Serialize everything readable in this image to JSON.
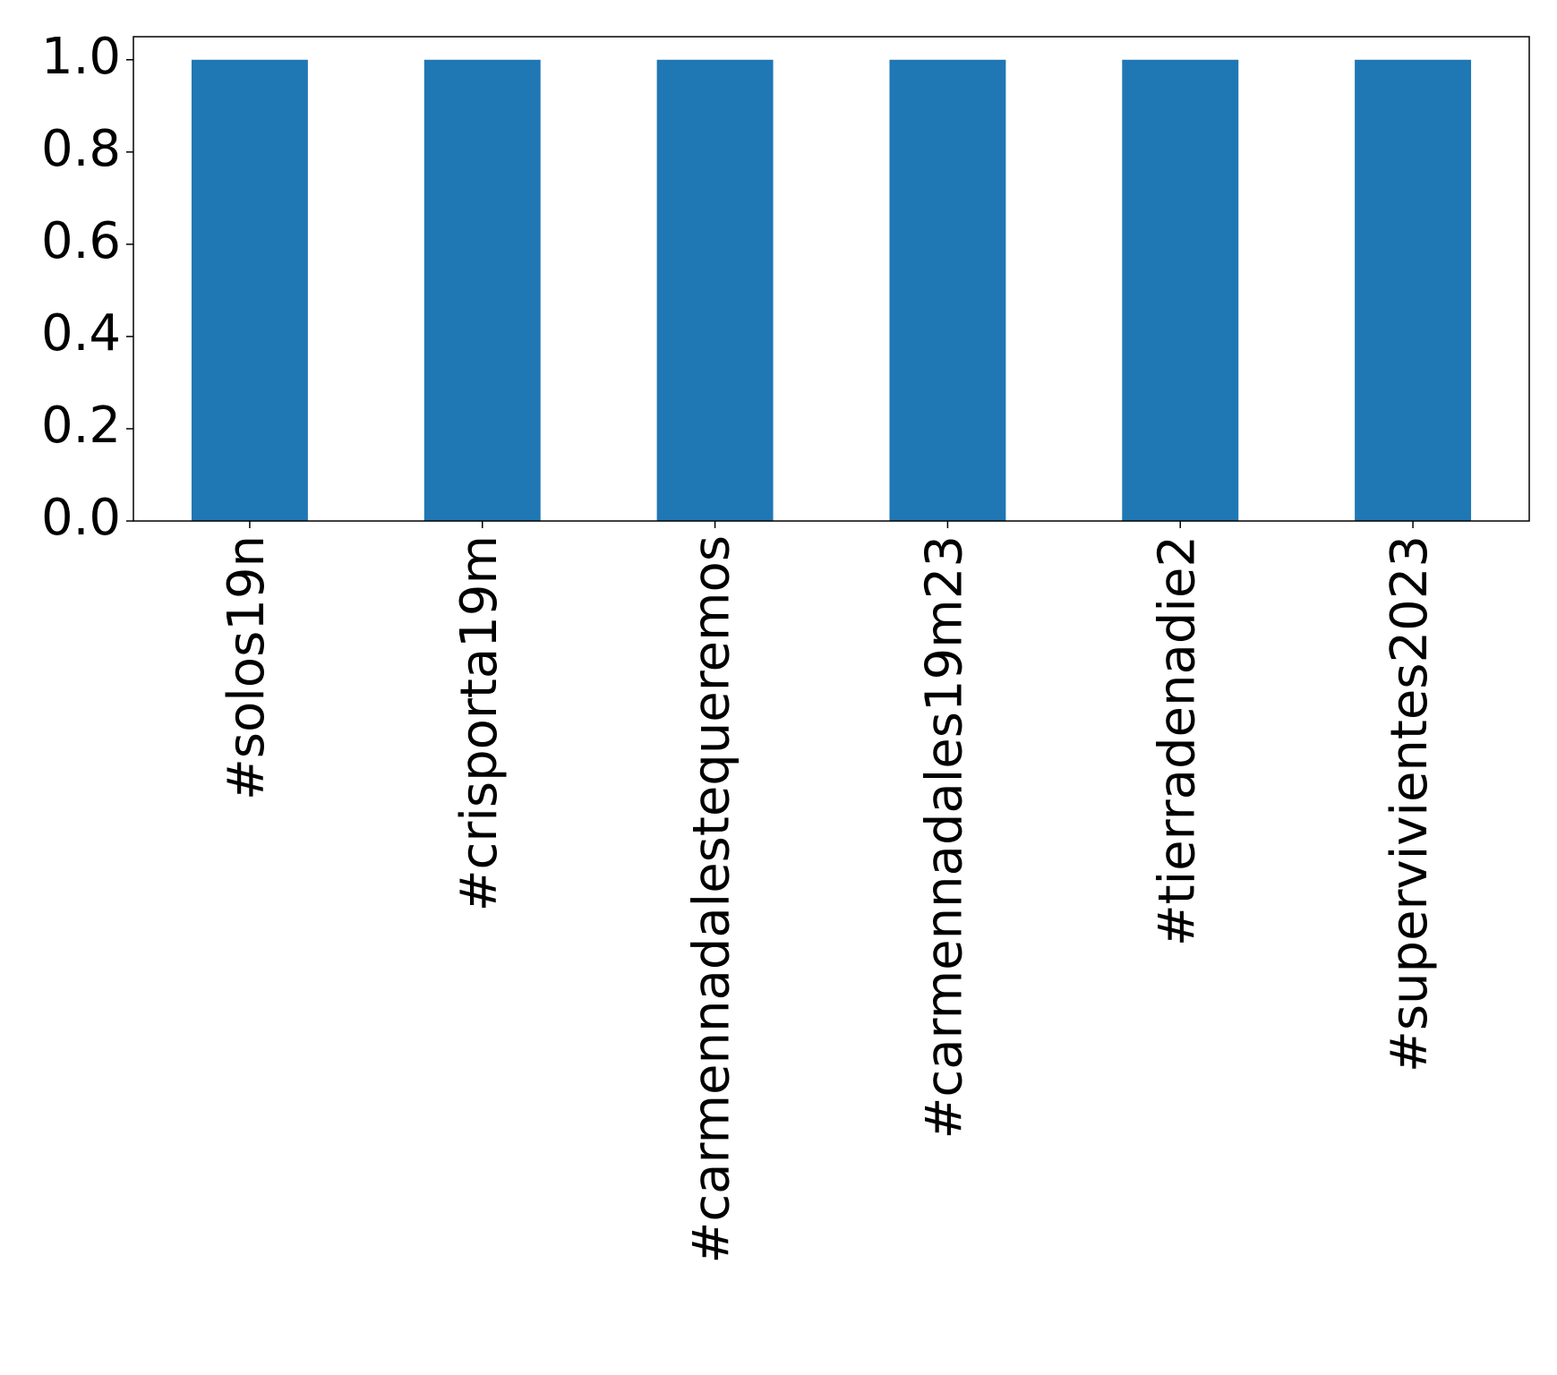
{
  "chart_data": {
    "type": "bar",
    "categories": [
      "#solos19n",
      "#crisporta19m",
      "#carmennadalestequeremos",
      "#carmennadales19m23",
      "#tierradenadie2",
      "#supervivientes2023"
    ],
    "values": [
      1,
      1,
      1,
      1,
      1,
      1
    ],
    "color": "#1f77b4",
    "ylim": [
      0,
      1.05
    ],
    "yticks": [
      {
        "value": 0,
        "label": "0.0"
      },
      {
        "value": 0.2,
        "label": "0.2"
      },
      {
        "value": 0.4,
        "label": "0.4"
      },
      {
        "value": 0.6,
        "label": "0.6"
      },
      {
        "value": 0.8,
        "label": "0.8"
      },
      {
        "value": 1,
        "label": "1.0"
      }
    ],
    "grid": false
  }
}
